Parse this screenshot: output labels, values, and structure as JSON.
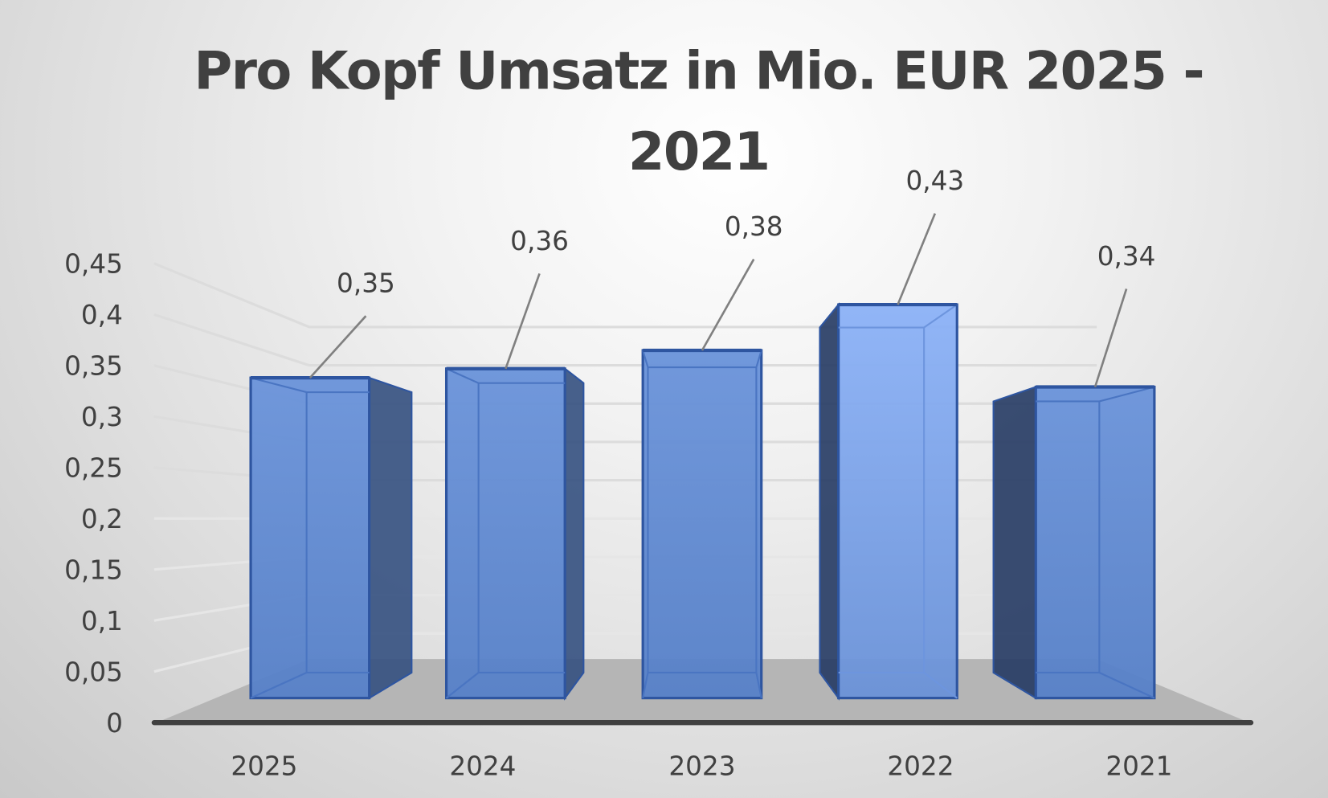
{
  "chart_data": {
    "type": "bar",
    "subtype": "3d-column",
    "title": "Pro Kopf Umsatz in Mio. EUR 2025 - 2021",
    "title_lines": [
      "Pro Kopf Umsatz in Mio. EUR 2025 -",
      "2021"
    ],
    "categories": [
      "2025",
      "2024",
      "2023",
      "2022",
      "2021"
    ],
    "values": [
      0.35,
      0.36,
      0.38,
      0.43,
      0.34
    ],
    "data_labels": [
      "0,35",
      "0,36",
      "0,38",
      "0,43",
      "0,34"
    ],
    "xlabel": "",
    "ylabel": "",
    "ylim": [
      0,
      0.45
    ],
    "y_ticks": [
      "0",
      "0,05",
      "0,1",
      "0,15",
      "0,2",
      "0,25",
      "0,3",
      "0,35",
      "0,4",
      "0,45"
    ],
    "grid": true,
    "legend": "none",
    "colors": {
      "bar_front": "#5b85cc",
      "bar_front_highlight": "#86aef5",
      "bar_side": "#2f4a7a",
      "bar_edge": "#2e55a0",
      "floor": "#b4b4b4",
      "axis_line": "#404040",
      "text": "#404040",
      "leader_line": "#808080"
    }
  }
}
